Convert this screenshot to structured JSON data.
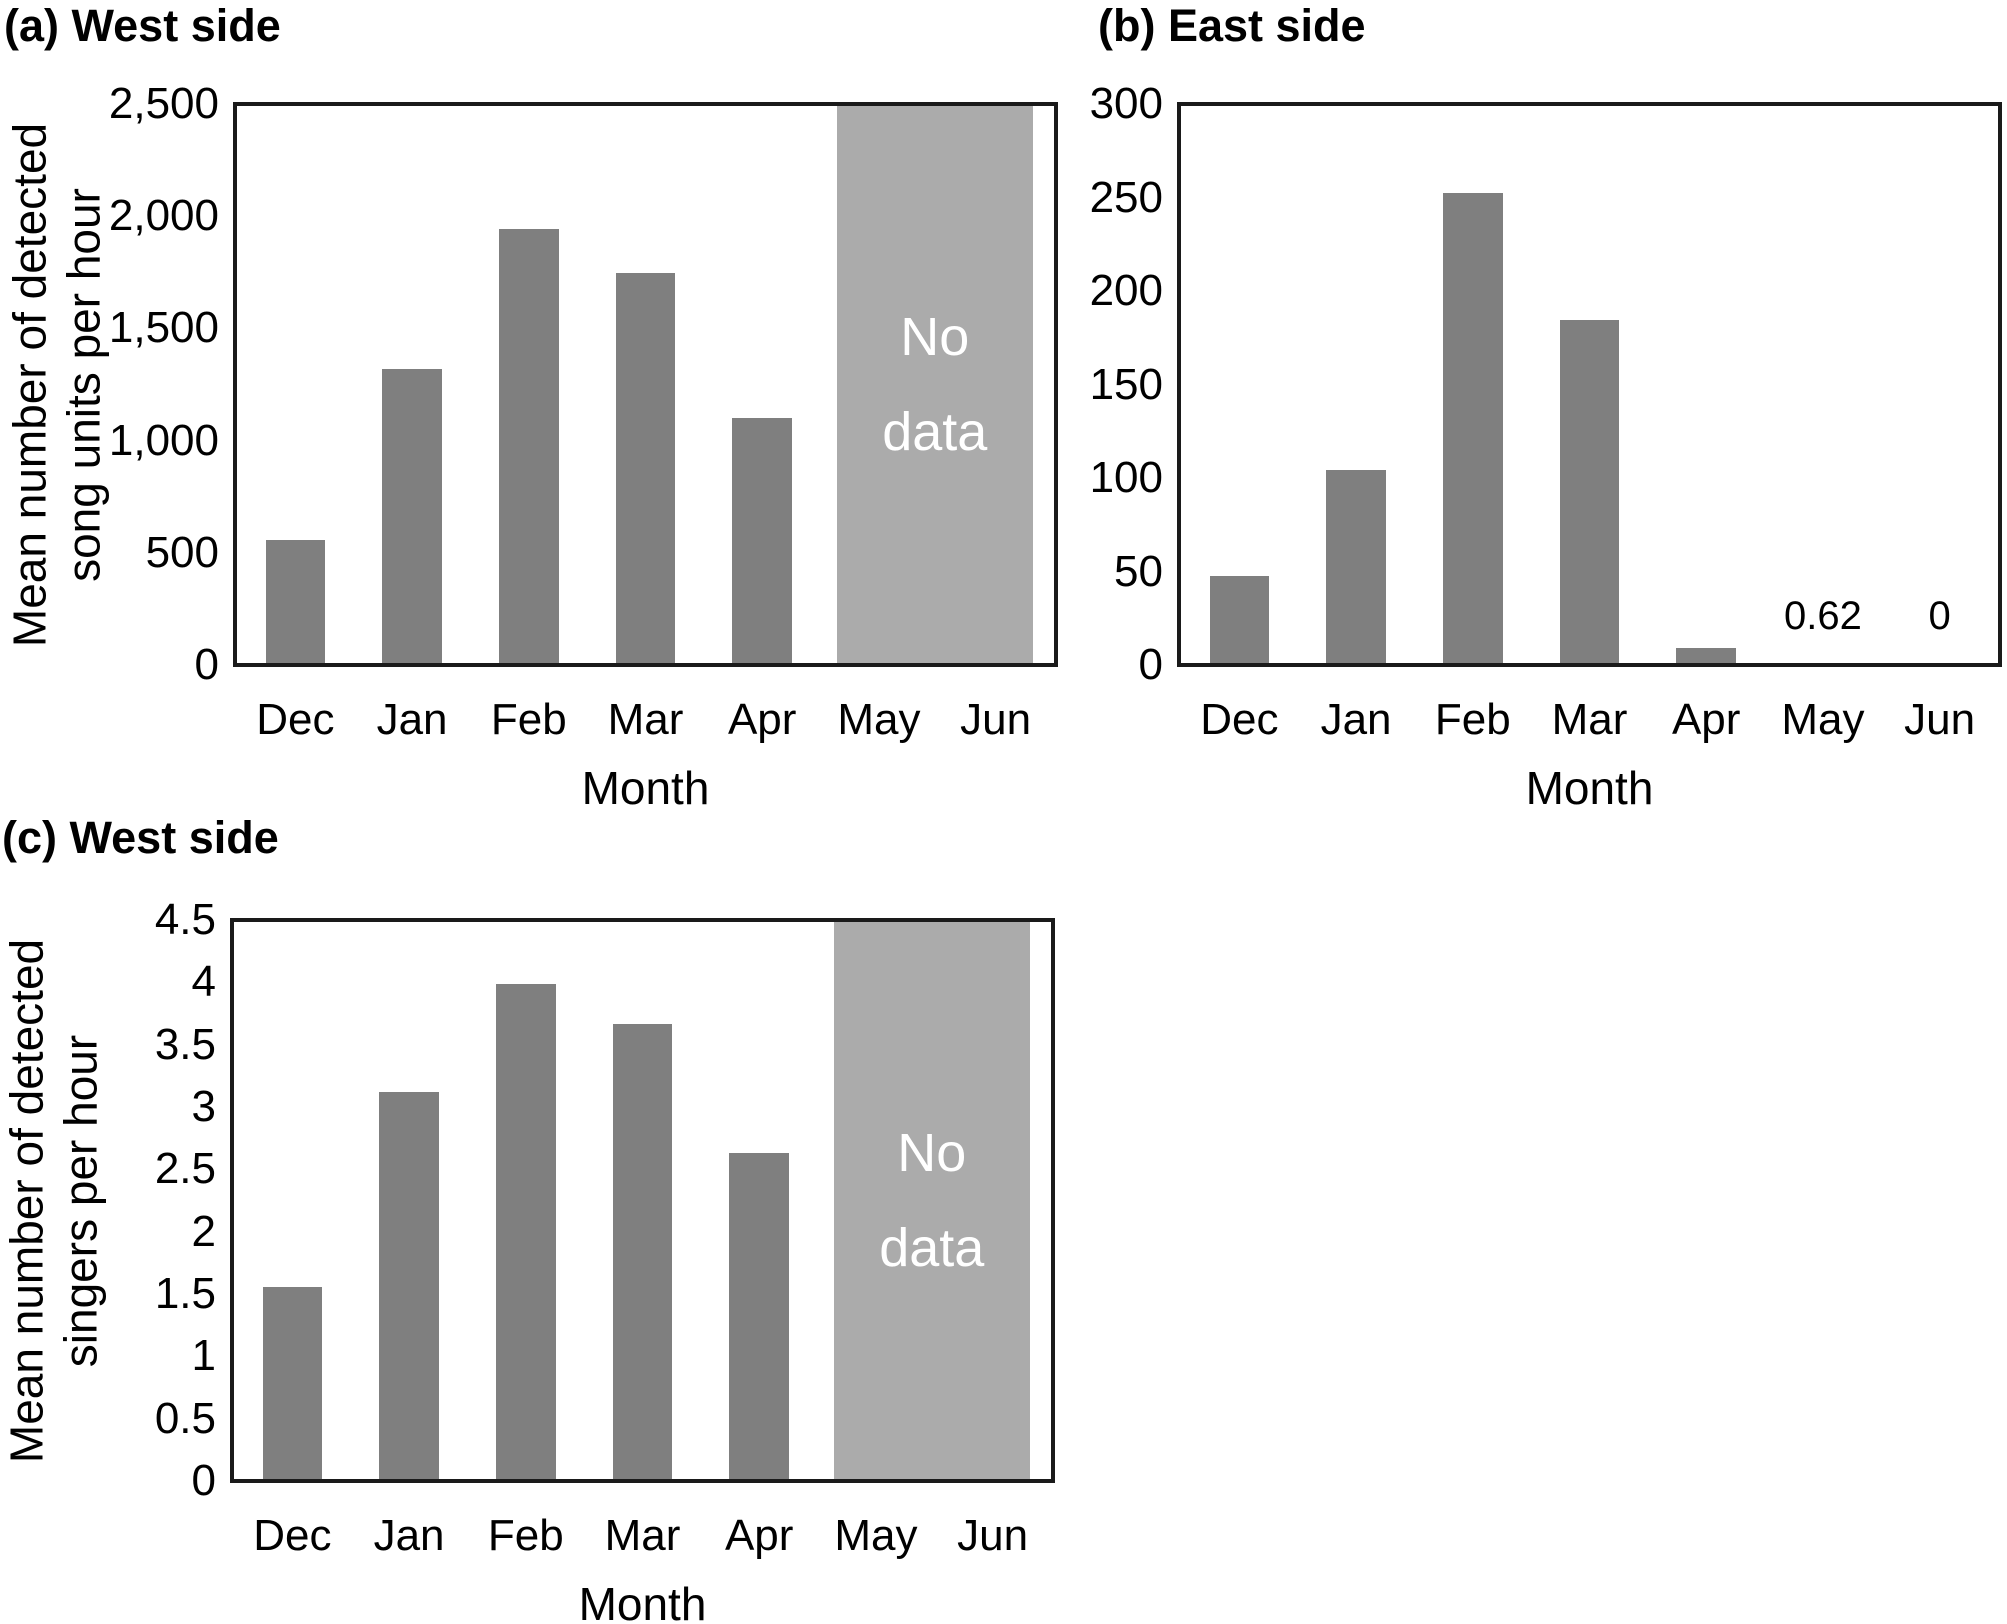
{
  "colors": {
    "bar_fill": "#7f7f7f",
    "no_data_fill": "#ababab",
    "no_data_text": "#ffffff",
    "axis": "#1a1a1a"
  },
  "chart_data": [
    {
      "type": "bar",
      "title": "(a) West side",
      "ylabel_lines": [
        "Mean number of detected",
        "song units per hour"
      ],
      "xlabel": "Month",
      "categories": [
        "Dec",
        "Jan",
        "Feb",
        "Mar",
        "Apr",
        "May",
        "Jun"
      ],
      "values": [
        550,
        1320,
        1950,
        1750,
        1100,
        null,
        null
      ],
      "ylim": [
        0,
        2500
      ],
      "yticks": [
        {
          "value": 0,
          "label": "0"
        },
        {
          "value": 500,
          "label": "500"
        },
        {
          "value": 1000,
          "label": "1,000"
        },
        {
          "value": 1500,
          "label": "1,500"
        },
        {
          "value": 2000,
          "label": "2,000"
        },
        {
          "value": 2500,
          "label": "2,500"
        }
      ],
      "grid": false,
      "legend": null,
      "no_data": {
        "months": [
          "May",
          "Jun"
        ],
        "lines": [
          "No",
          "data"
        ]
      },
      "annotations": []
    },
    {
      "type": "bar",
      "title": "(b) East side",
      "ylabel_lines": [],
      "xlabel": "Month",
      "categories": [
        "Dec",
        "Jan",
        "Feb",
        "Mar",
        "Apr",
        "May",
        "Jun"
      ],
      "values": [
        47,
        104,
        253,
        185,
        8,
        0.62,
        0
      ],
      "ylim": [
        0,
        300
      ],
      "yticks": [
        {
          "value": 0,
          "label": "0"
        },
        {
          "value": 50,
          "label": "50"
        },
        {
          "value": 100,
          "label": "100"
        },
        {
          "value": 150,
          "label": "150"
        },
        {
          "value": 200,
          "label": "200"
        },
        {
          "value": 250,
          "label": "250"
        },
        {
          "value": 300,
          "label": "300"
        }
      ],
      "grid": false,
      "legend": null,
      "no_data": null,
      "annotations": [
        {
          "category": "May",
          "label": "0.62"
        },
        {
          "category": "Jun",
          "label": "0"
        }
      ]
    },
    {
      "type": "bar",
      "title": "(c) West side",
      "ylabel_lines": [
        "Mean number of detected",
        "singers per hour"
      ],
      "xlabel": "Month",
      "categories": [
        "Dec",
        "Jan",
        "Feb",
        "Mar",
        "Apr",
        "May",
        "Jun"
      ],
      "values": [
        1.55,
        3.13,
        4.0,
        3.68,
        2.63,
        null,
        null
      ],
      "ylim": [
        0,
        4.5
      ],
      "yticks": [
        {
          "value": 0,
          "label": "0"
        },
        {
          "value": 0.5,
          "label": "0.5"
        },
        {
          "value": 1,
          "label": "1"
        },
        {
          "value": 1.5,
          "label": "1.5"
        },
        {
          "value": 2,
          "label": "2"
        },
        {
          "value": 2.5,
          "label": "2.5"
        },
        {
          "value": 3,
          "label": "3"
        },
        {
          "value": 3.5,
          "label": "3.5"
        },
        {
          "value": 4,
          "label": "4"
        },
        {
          "value": 4.5,
          "label": "4.5"
        }
      ],
      "grid": false,
      "legend": null,
      "no_data": {
        "months": [
          "May",
          "Jun"
        ],
        "lines": [
          "No",
          "data"
        ]
      },
      "annotations": []
    }
  ]
}
